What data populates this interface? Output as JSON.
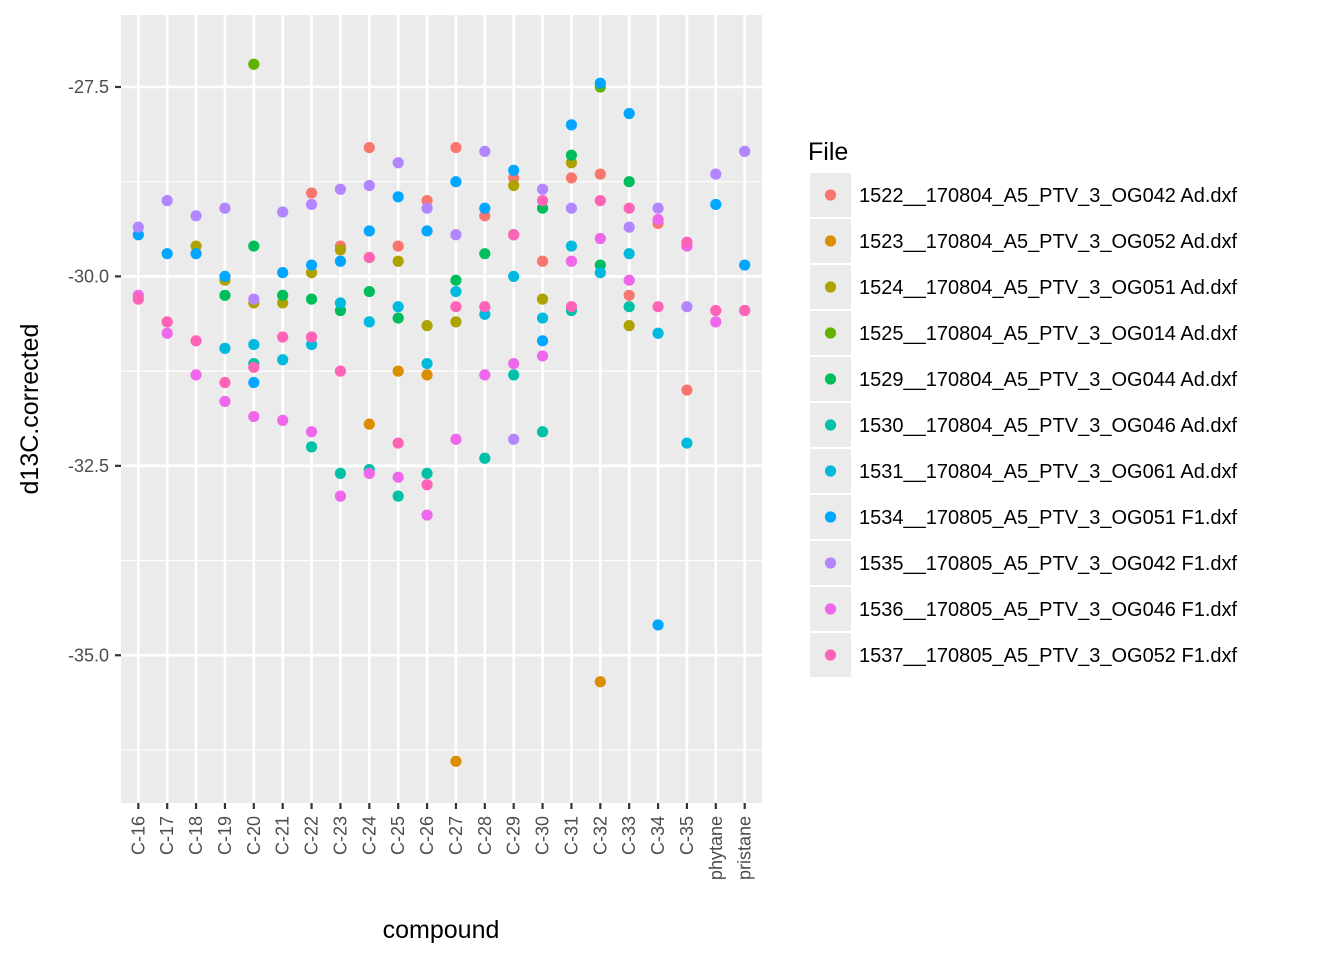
{
  "chart_data": {
    "type": "scatter",
    "xlabel": "compound",
    "ylabel": "d13C.corrected",
    "categories": [
      "C-16",
      "C-17",
      "C-18",
      "C-19",
      "C-20",
      "C-21",
      "C-22",
      "C-23",
      "C-24",
      "C-25",
      "C-26",
      "C-27",
      "C-28",
      "C-29",
      "C-30",
      "C-31",
      "C-32",
      "C-33",
      "C-34",
      "C-35",
      "phytane",
      "pristane"
    ],
    "ylim": [
      -36.95,
      -26.55
    ],
    "yticks": [
      -27.5,
      -30.0,
      -32.5,
      -35.0
    ],
    "ytick_labels": [
      "-27.5",
      "-30.0",
      "-32.5",
      "-35.0"
    ],
    "grid": true,
    "panel_background": "#ebebeb",
    "legend": {
      "title": "File",
      "position": "right"
    },
    "series": [
      {
        "name": "1522__170804_A5_PTV_3_OG042 Ad.dxf",
        "color": "#F8766D",
        "values": [
          null,
          null,
          null,
          null,
          null,
          null,
          -28.9,
          -29.6,
          -28.3,
          -29.6,
          -29.0,
          -28.3,
          -29.2,
          -28.7,
          -29.8,
          -28.7,
          -28.65,
          -30.25,
          -29.3,
          -31.5,
          null,
          null
        ]
      },
      {
        "name": "1523__170804_A5_PTV_3_OG052 Ad.dxf",
        "color": "#DB8E00",
        "values": [
          null,
          null,
          null,
          null,
          null,
          null,
          null,
          null,
          -31.95,
          -31.25,
          -31.3,
          -36.4,
          null,
          null,
          null,
          null,
          -35.35,
          null,
          null,
          null,
          null,
          null
        ]
      },
      {
        "name": "1524__170804_A5_PTV_3_OG051 Ad.dxf",
        "color": "#AEA200",
        "values": [
          null,
          null,
          -29.6,
          -30.05,
          -30.35,
          -30.35,
          -29.95,
          -29.65,
          -29.75,
          -29.8,
          -30.65,
          -30.6,
          null,
          -28.8,
          -30.3,
          -28.5,
          null,
          -30.65,
          null,
          null,
          null,
          null
        ]
      },
      {
        "name": "1525__170804_A5_PTV_3_OG014 Ad.dxf",
        "color": "#64B200",
        "values": [
          null,
          null,
          null,
          null,
          -27.2,
          null,
          null,
          null,
          null,
          null,
          null,
          null,
          null,
          null,
          null,
          null,
          -27.5,
          null,
          null,
          null,
          null,
          null
        ]
      },
      {
        "name": "1529__170804_A5_PTV_3_OG044 Ad.dxf",
        "color": "#00BD5C",
        "values": [
          null,
          null,
          null,
          -30.25,
          -29.6,
          -30.25,
          -30.3,
          -30.45,
          -30.2,
          -30.55,
          null,
          -30.05,
          -29.7,
          -29.45,
          -29.1,
          -28.4,
          -29.85,
          -28.75,
          null,
          null,
          null,
          null
        ]
      },
      {
        "name": "1530__170804_A5_PTV_3_OG046 Ad.dxf",
        "color": "#00C1A7",
        "values": [
          null,
          null,
          null,
          null,
          -31.15,
          null,
          -32.25,
          -32.6,
          -32.55,
          -32.9,
          -32.6,
          null,
          -32.4,
          -31.3,
          -32.05,
          -30.45,
          null,
          -30.4,
          null,
          null,
          null,
          null
        ]
      },
      {
        "name": "1531__170804_A5_PTV_3_OG061 Ad.dxf",
        "color": "#00BADE",
        "values": [
          null,
          null,
          null,
          -30.95,
          -30.9,
          -31.1,
          -30.9,
          -30.35,
          -30.6,
          -30.4,
          -31.15,
          -30.2,
          -30.5,
          -30.0,
          -30.55,
          -29.6,
          -29.95,
          -29.7,
          -30.75,
          -32.2,
          null,
          null
        ]
      },
      {
        "name": "1534__170805_A5_PTV_3_OG051 F1.dxf",
        "color": "#00A6FF",
        "values": [
          -29.45,
          -29.7,
          -29.7,
          -30.0,
          -31.4,
          -29.95,
          -29.85,
          -29.8,
          -29.4,
          -28.95,
          -29.4,
          -28.75,
          -29.1,
          -28.6,
          -30.85,
          -28.0,
          -27.45,
          -27.85,
          -34.6,
          -29.55,
          -29.05,
          -29.85
        ]
      },
      {
        "name": "1535__170805_A5_PTV_3_OG042 F1.dxf",
        "color": "#B385FF",
        "values": [
          -29.35,
          -29.0,
          -29.2,
          -29.1,
          -30.3,
          -29.15,
          -29.05,
          -28.85,
          -28.8,
          -28.5,
          -29.1,
          -29.45,
          -28.35,
          -32.15,
          -28.85,
          -29.1,
          null,
          -29.35,
          -29.1,
          -30.4,
          -28.65,
          -28.35
        ]
      },
      {
        "name": "1536__170805_A5_PTV_3_OG046 F1.dxf",
        "color": "#EF67EB",
        "values": [
          -30.25,
          -30.75,
          -31.3,
          -31.65,
          -31.85,
          -31.9,
          -32.05,
          -32.9,
          -32.6,
          -32.65,
          -33.15,
          -32.15,
          -31.3,
          -31.15,
          -31.05,
          -29.8,
          -29.5,
          -30.05,
          -29.25,
          -29.6,
          -30.6,
          -30.45
        ]
      },
      {
        "name": "1537__170805_A5_PTV_3_OG052 F1.dxf",
        "color": "#FF63B6",
        "values": [
          -30.3,
          -30.6,
          -30.85,
          -31.4,
          -31.2,
          -30.8,
          -30.8,
          -31.25,
          -29.75,
          -32.2,
          -32.75,
          -30.4,
          -30.4,
          -29.45,
          -29.0,
          -30.4,
          -29.0,
          -29.1,
          -30.4,
          -29.55,
          -30.45,
          -30.45
        ]
      }
    ]
  }
}
